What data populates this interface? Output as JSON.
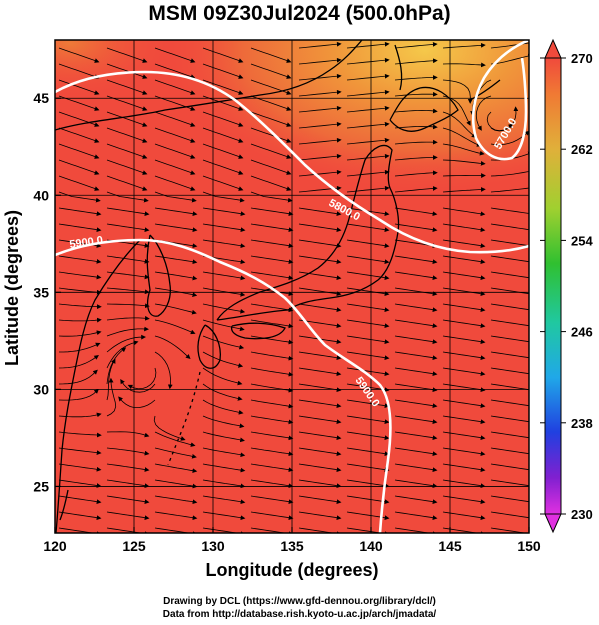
{
  "title": "MSM 09Z30Jul2024 (500.0hPa)",
  "x_axis": {
    "label": "Longitude (degrees)",
    "ticks": [
      "120",
      "125",
      "130",
      "135",
      "140",
      "145",
      "150"
    ],
    "range": [
      120,
      150
    ]
  },
  "y_axis": {
    "label": "Latitude  (degrees)",
    "ticks": [
      "25",
      "30",
      "35",
      "40",
      "45"
    ],
    "range": [
      22.6,
      48
    ]
  },
  "colorbar": {
    "labels": [
      "270",
      "262",
      "254",
      "246",
      "238",
      "230"
    ],
    "range": [
      230,
      270
    ]
  },
  "contours": [
    {
      "label": "5900.0"
    },
    {
      "label": "5800.0"
    },
    {
      "label": "5700.0"
    }
  ],
  "credits": {
    "line1": "Drawing by DCL (https://www.gfd-dennou.org/library/dcl/)",
    "line2": "Data from http://database.rish.kyoto-u.ac.jp/arch/jmadata/"
  },
  "colors": {
    "field_warm": "#f04a3c",
    "field_hot": "#e8803a",
    "field_yellow": "#f2c046",
    "contour": "#ffffff",
    "coast": "#000000"
  }
}
